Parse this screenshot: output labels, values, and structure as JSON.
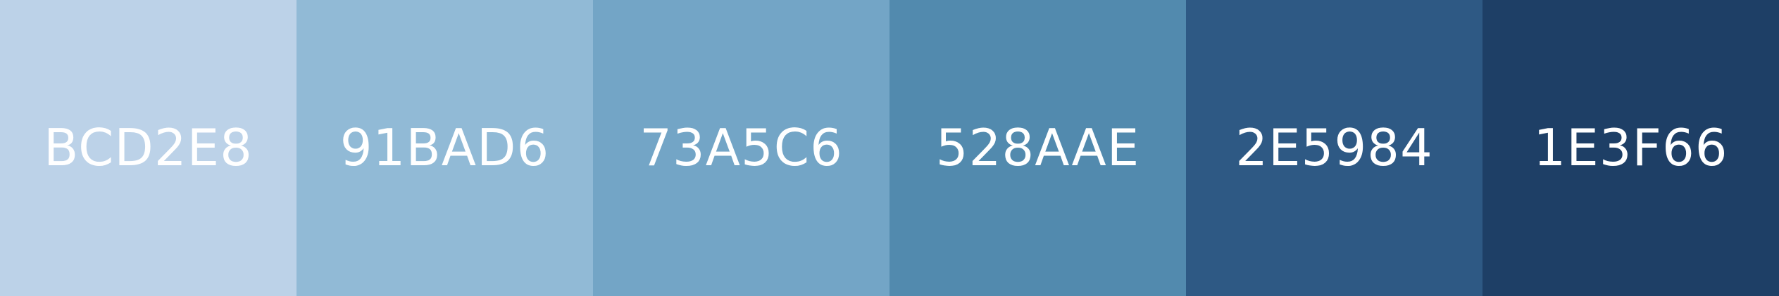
{
  "palette": {
    "swatches": [
      {
        "label": "BCD2E8",
        "color": "#BCD2E8"
      },
      {
        "label": "91BAD6",
        "color": "#91BAD6"
      },
      {
        "label": "73A5C6",
        "color": "#73A5C6"
      },
      {
        "label": "528AAE",
        "color": "#528AAE"
      },
      {
        "label": "2E5984",
        "color": "#2E5984"
      },
      {
        "label": "1E3F66",
        "color": "#1E3F66"
      }
    ],
    "text_color": "#FFFFFF"
  }
}
